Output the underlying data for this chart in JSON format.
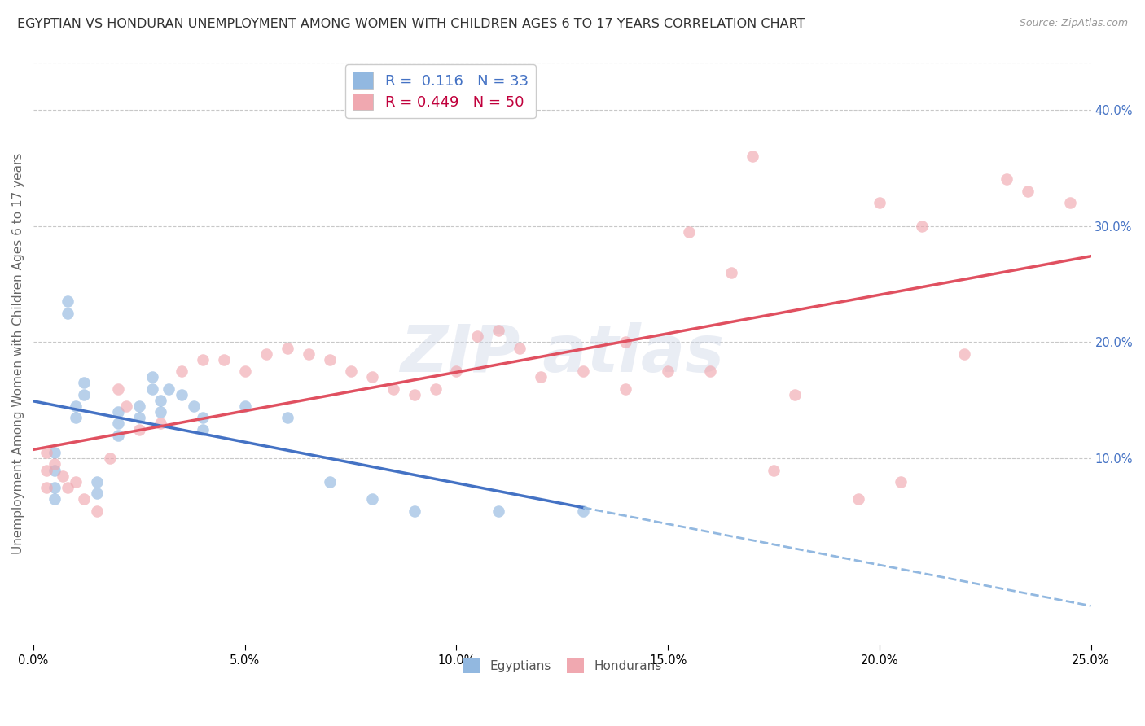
{
  "title": "EGYPTIAN VS HONDURAN UNEMPLOYMENT AMONG WOMEN WITH CHILDREN AGES 6 TO 17 YEARS CORRELATION CHART",
  "source": "Source: ZipAtlas.com",
  "ylabel": "Unemployment Among Women with Children Ages 6 to 17 years",
  "xlim": [
    0.0,
    0.25
  ],
  "ylim": [
    -0.06,
    0.44
  ],
  "xticks": [
    0.0,
    0.05,
    0.1,
    0.15,
    0.2,
    0.25
  ],
  "yticks": [
    0.1,
    0.2,
    0.3,
    0.4
  ],
  "legend_r1": "R =  0.116",
  "legend_n1": "N = 33",
  "legend_r2": "R = 0.449",
  "legend_n2": "N = 50",
  "color_egyptian": "#92b8e0",
  "color_honduran": "#f0a8b0",
  "line_color_egyptian_solid": "#4472c4",
  "line_color_egyptian_dashed": "#92b8e0",
  "line_color_honduran": "#e05060",
  "background_color": "#ffffff",
  "grid_color": "#c8c8c8",
  "egyptians_x": [
    0.005,
    0.005,
    0.005,
    0.005,
    0.008,
    0.008,
    0.01,
    0.01,
    0.012,
    0.012,
    0.015,
    0.015,
    0.02,
    0.02,
    0.02,
    0.025,
    0.025,
    0.028,
    0.028,
    0.03,
    0.03,
    0.032,
    0.035,
    0.038,
    0.04,
    0.04,
    0.05,
    0.06,
    0.07,
    0.08,
    0.09,
    0.11,
    0.13
  ],
  "egyptians_y": [
    0.105,
    0.09,
    0.075,
    0.065,
    0.235,
    0.225,
    0.145,
    0.135,
    0.165,
    0.155,
    0.08,
    0.07,
    0.14,
    0.13,
    0.12,
    0.145,
    0.135,
    0.17,
    0.16,
    0.15,
    0.14,
    0.16,
    0.155,
    0.145,
    0.135,
    0.125,
    0.145,
    0.135,
    0.08,
    0.065,
    0.055,
    0.055,
    0.055
  ],
  "hondurans_x": [
    0.003,
    0.003,
    0.003,
    0.005,
    0.007,
    0.008,
    0.01,
    0.012,
    0.015,
    0.018,
    0.02,
    0.022,
    0.025,
    0.03,
    0.035,
    0.04,
    0.045,
    0.05,
    0.055,
    0.06,
    0.065,
    0.07,
    0.075,
    0.08,
    0.085,
    0.09,
    0.095,
    0.1,
    0.105,
    0.11,
    0.115,
    0.12,
    0.13,
    0.14,
    0.14,
    0.15,
    0.155,
    0.16,
    0.165,
    0.17,
    0.175,
    0.18,
    0.195,
    0.2,
    0.205,
    0.21,
    0.22,
    0.23,
    0.235,
    0.245
  ],
  "hondurans_y": [
    0.105,
    0.09,
    0.075,
    0.095,
    0.085,
    0.075,
    0.08,
    0.065,
    0.055,
    0.1,
    0.16,
    0.145,
    0.125,
    0.13,
    0.175,
    0.185,
    0.185,
    0.175,
    0.19,
    0.195,
    0.19,
    0.185,
    0.175,
    0.17,
    0.16,
    0.155,
    0.16,
    0.175,
    0.205,
    0.21,
    0.195,
    0.17,
    0.175,
    0.2,
    0.16,
    0.175,
    0.295,
    0.175,
    0.26,
    0.36,
    0.09,
    0.155,
    0.065,
    0.32,
    0.08,
    0.3,
    0.19,
    0.34,
    0.33,
    0.32
  ],
  "title_fontsize": 11.5,
  "label_fontsize": 11,
  "tick_fontsize": 10.5,
  "legend_fontsize": 13,
  "marker_size": 110
}
